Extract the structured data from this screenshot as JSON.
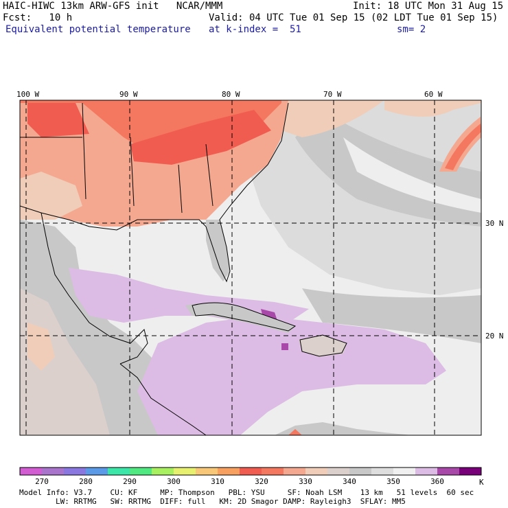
{
  "header": {
    "title_left": "HAIC-HIWC 13km ARW-GFS init   NCAR/MMM",
    "init": "Init: 18 UTC Mon 31 Aug 15",
    "fcst": "Fcst:   10 h",
    "valid": "Valid: 04 UTC Tue 01 Sep 15 (02 LDT Tue 01 Sep 15)",
    "field": "Equivalent potential temperature",
    "level": "at k-index =  51",
    "smooth": "sm= 2"
  },
  "lon_labels": [
    "100 W",
    "90 W",
    "80 W",
    "70 W",
    "60 W"
  ],
  "lat_labels": [
    "30 N",
    "20 N"
  ],
  "colorbar": {
    "unit": "K",
    "tick_labels": [
      "270",
      "280",
      "290",
      "300",
      "310",
      "320",
      "330",
      "340",
      "350",
      "360"
    ],
    "colors": [
      "#d25cd2",
      "#a874cc",
      "#8a78e0",
      "#5a9ae6",
      "#3ce6a8",
      "#50e880",
      "#a8f060",
      "#e8f070",
      "#f8c878",
      "#f8a060",
      "#f05c50",
      "#f47860",
      "#f4a890",
      "#f0cdb8",
      "#dcd0cc",
      "#c8c8c8",
      "#dedede",
      "#f0f0f0",
      "#dcbce4",
      "#a848a8",
      "#780078"
    ]
  },
  "footer": {
    "line1": "Model Info: V3.7    CU: KF     MP: Thompson   PBL: YSU     SF: Noah LSM    13 km   51 levels  60 sec",
    "line2": "        LW: RRTMG   SW: RRTMG  DIFF: full   KM: 2D Smagor DAMP: Rayleigh3  SFLAY: MM5"
  }
}
